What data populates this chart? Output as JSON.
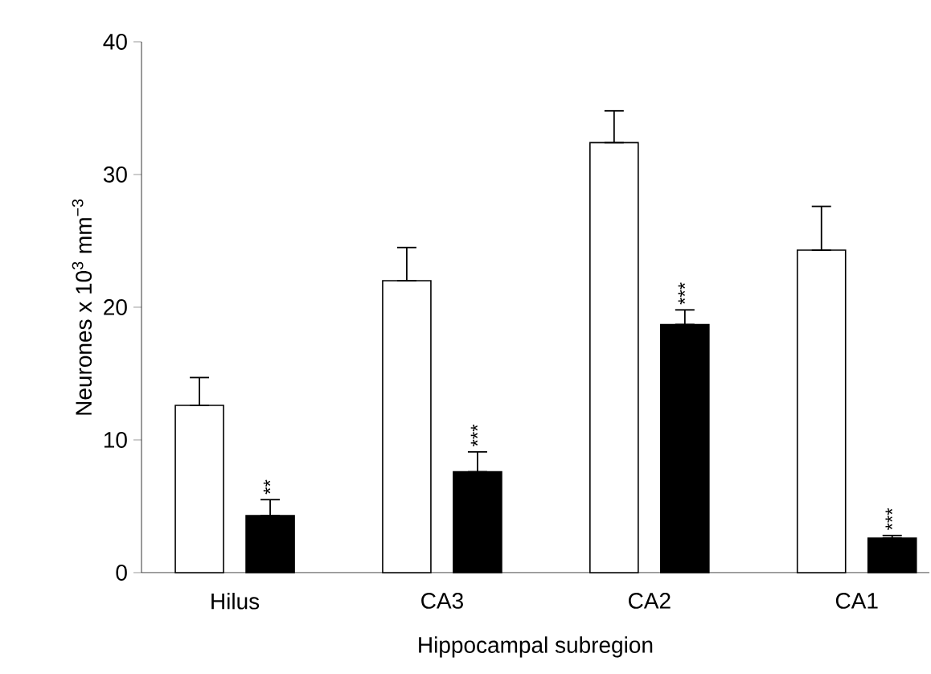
{
  "chart_data": {
    "type": "bar",
    "xlabel": "Hippocampal subregion",
    "ylabel": "Neurones x 10$^{3}$ mm$^{−3}$",
    "categories": [
      "Hilus",
      "CA3",
      "CA2",
      "CA1"
    ],
    "series": [
      {
        "color": "#ffffff",
        "values": [
          12.6,
          22,
          32.4,
          24.3
        ],
        "errors": [
          [
            12.6,
            14.7
          ],
          [
            22,
            24.5
          ],
          [
            32.4,
            34.8
          ],
          [
            24.3,
            27.6
          ]
        ]
      },
      {
        "color": "#000000",
        "values": [
          4.3,
          7.6,
          18.7,
          2.6
        ],
        "errors": [
          [
            4.3,
            5.5
          ],
          [
            7.6,
            9.1
          ],
          [
            18.7,
            19.8
          ],
          [
            2.6,
            2.8
          ]
        ]
      }
    ],
    "annotations": [
      "**",
      "***",
      "***",
      "***"
    ],
    "ylim": [
      0,
      40
    ],
    "yticks": [
      0,
      10,
      20,
      30,
      40
    ],
    "grid": false
  }
}
